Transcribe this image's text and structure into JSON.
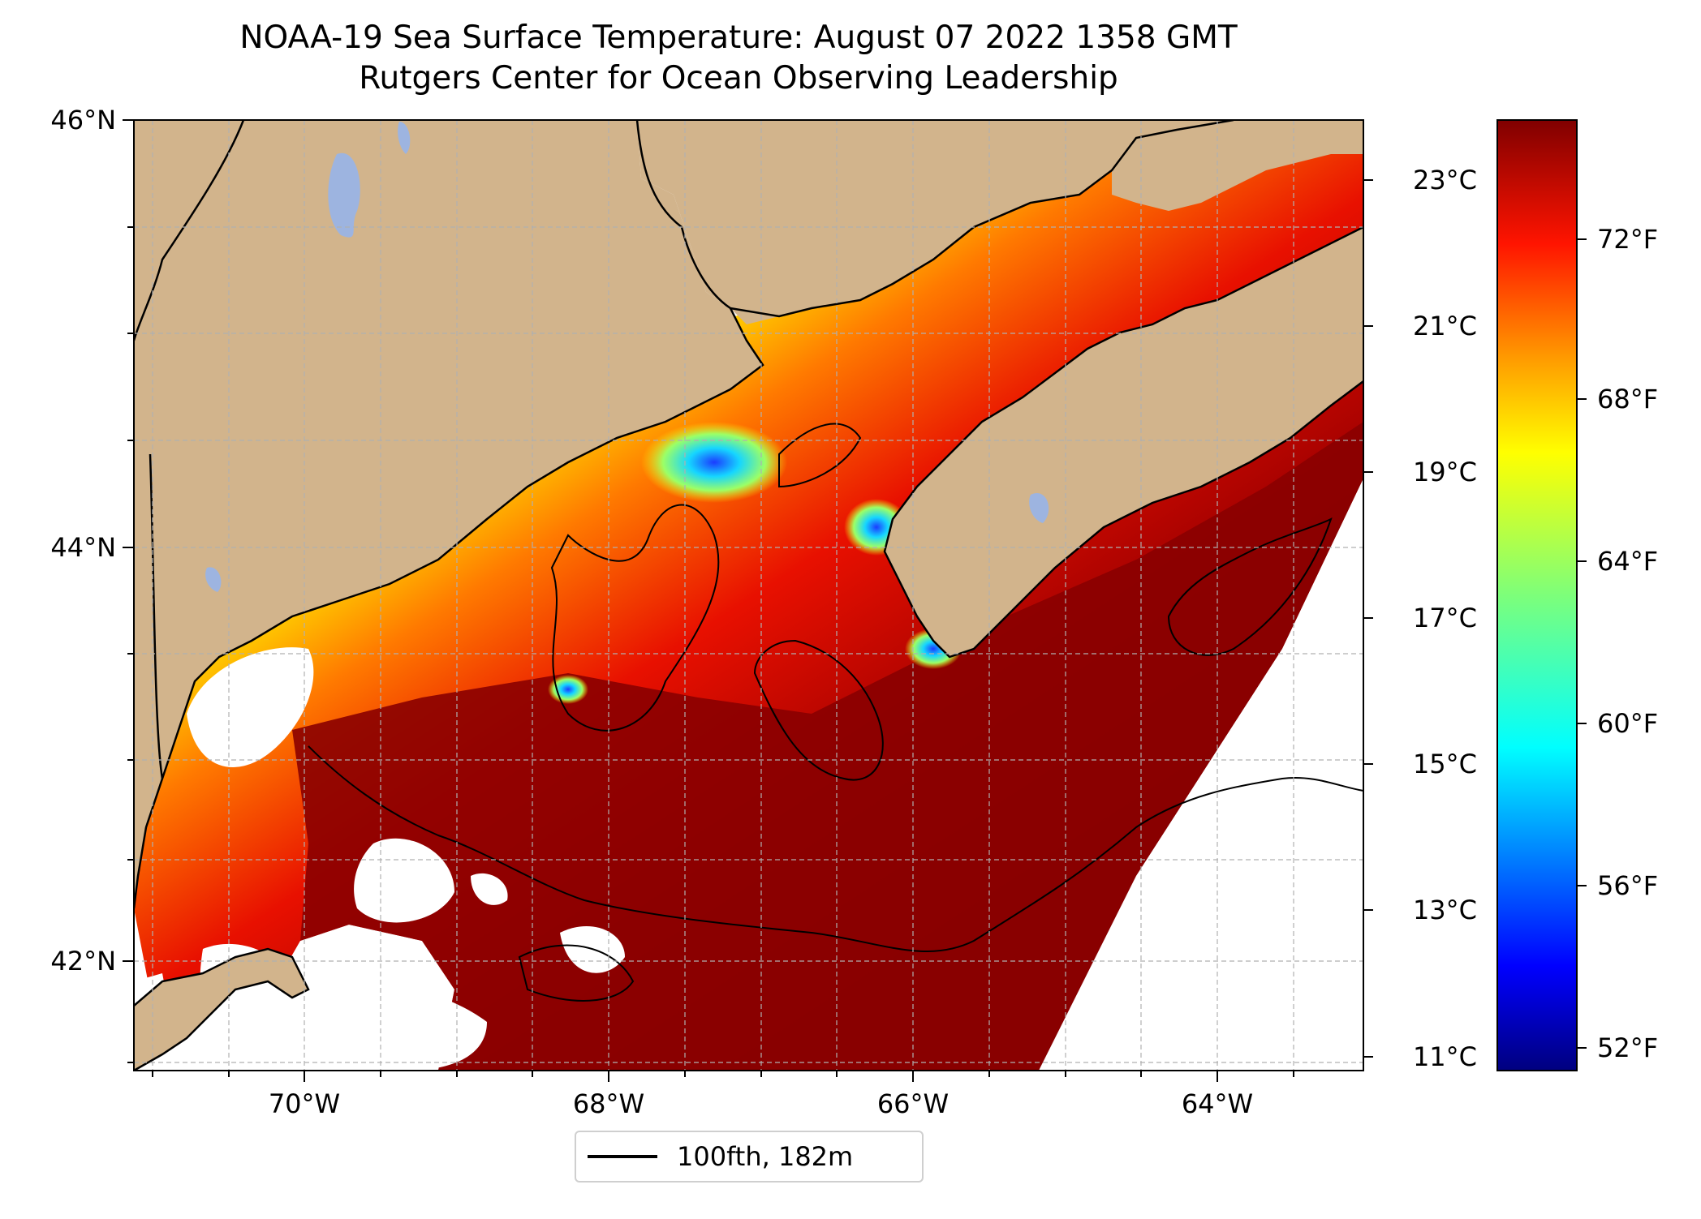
{
  "title": {
    "line1": "NOAA-19 Sea Surface Temperature: August 07 2022 1358 GMT",
    "line2": "Rutgers Center for Ocean Observing Leadership"
  },
  "map": {
    "lat_labels": [
      "46°N",
      "44°N",
      "42°N"
    ],
    "lon_labels": [
      "70°W",
      "68°W",
      "66°W",
      "64°W"
    ],
    "colors": {
      "land": "#d2b48c",
      "lakes": "#9db4e0",
      "nodata": "#ffffff",
      "coast": "#000000",
      "grid": "#b0b0b0"
    }
  },
  "colorbar": {
    "celsius_labels": [
      "23°C",
      "21°C",
      "19°C",
      "17°C",
      "15°C",
      "13°C",
      "11°C"
    ],
    "fahrenheit_labels": [
      "72°F",
      "68°F",
      "64°F",
      "60°F",
      "56°F",
      "52°F"
    ],
    "colormap": "jet"
  },
  "legend": {
    "label": "100fth, 182m",
    "line_color": "#000000"
  }
}
